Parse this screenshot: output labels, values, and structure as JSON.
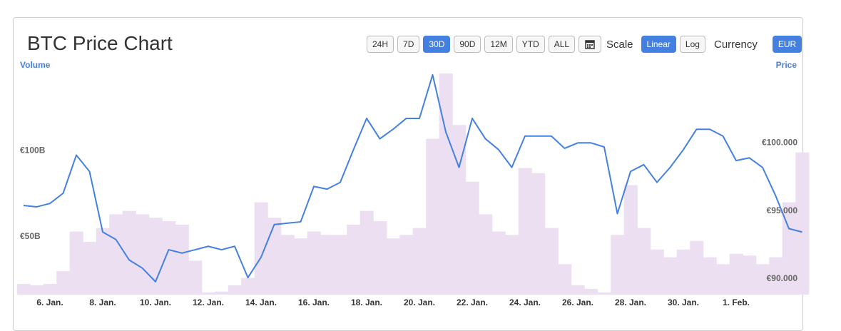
{
  "controls": {
    "ranges": [
      "24H",
      "7D",
      "30D",
      "90D",
      "12M",
      "YTD",
      "ALL"
    ],
    "active_range": 2,
    "scale_label": "Scale",
    "scales": [
      "Linear",
      "Log"
    ],
    "active_scale": 0,
    "currency_label": "Currency",
    "currencies": [
      "EUR"
    ],
    "active_currency": 0
  },
  "chart_data": {
    "type": "line",
    "title": "BTC Price Chart",
    "categories": [
      null,
      null,
      "6. Jan.",
      null,
      null,
      null,
      "8. Jan.",
      null,
      null,
      null,
      "10. Jan.",
      null,
      null,
      null,
      "12. Jan.",
      null,
      null,
      null,
      "14. Jan.",
      null,
      null,
      null,
      "16. Jan.",
      null,
      null,
      null,
      "18. Jan.",
      null,
      null,
      null,
      "20. Jan.",
      null,
      null,
      null,
      "22. Jan.",
      null,
      null,
      null,
      "24. Jan.",
      null,
      null,
      null,
      "26. Jan.",
      null,
      null,
      null,
      "28. Jan.",
      null,
      null,
      null,
      "30. Jan.",
      null,
      null,
      null,
      "1. Feb.",
      null,
      null,
      null,
      null,
      null
    ],
    "series": [
      {
        "name": "Volume",
        "type": "bar",
        "axis": "y",
        "color": "#ecdff1",
        "values": [
          22.5,
          21.7,
          22.5,
          30,
          53,
          47,
          55,
          63,
          65,
          63,
          61,
          59,
          57,
          36,
          17.5,
          18,
          21.7,
          26,
          70,
          61,
          51,
          49,
          53,
          51,
          51,
          57,
          65,
          59,
          49,
          51,
          55,
          107,
          145,
          115,
          82,
          63,
          53,
          51,
          90,
          87,
          55,
          34,
          21.7,
          19.6,
          17.5,
          51,
          80,
          55,
          42.5,
          38,
          42.5,
          47.5,
          38,
          34,
          40,
          39,
          34,
          38,
          70,
          99
        ]
      },
      {
        "name": "Price",
        "type": "line",
        "axis": "y2",
        "color": "#4480e0",
        "values": [
          95400,
          95300,
          95550,
          96300,
          99100,
          97900,
          93450,
          92900,
          91400,
          90800,
          89800,
          92150,
          91900,
          92150,
          92400,
          92150,
          92400,
          90100,
          91600,
          94000,
          94100,
          94200,
          96800,
          96600,
          97100,
          99500,
          101800,
          100300,
          101000,
          101800,
          101800,
          105000,
          100800,
          98200,
          101800,
          100300,
          99500,
          98200,
          100500,
          100500,
          100500,
          99600,
          100000,
          100000,
          99700,
          94800,
          97900,
          98400,
          97100,
          98200,
          99500,
          101000,
          101000,
          100500,
          98700,
          98900,
          98200,
          96100,
          93700,
          93450
        ]
      }
    ],
    "ylim": [
      16.25,
      145
    ],
    "yticks": [
      {
        "value": 50,
        "label": "€50B"
      },
      {
        "value": 100,
        "label": "€100B"
      }
    ],
    "y2lim": [
      88850,
      105100
    ],
    "y2ticks": [
      {
        "value": 90000,
        "label": "€90.000"
      },
      {
        "value": 95000,
        "label": "€95.000"
      },
      {
        "value": 100000,
        "label": "€100.000"
      }
    ]
  }
}
